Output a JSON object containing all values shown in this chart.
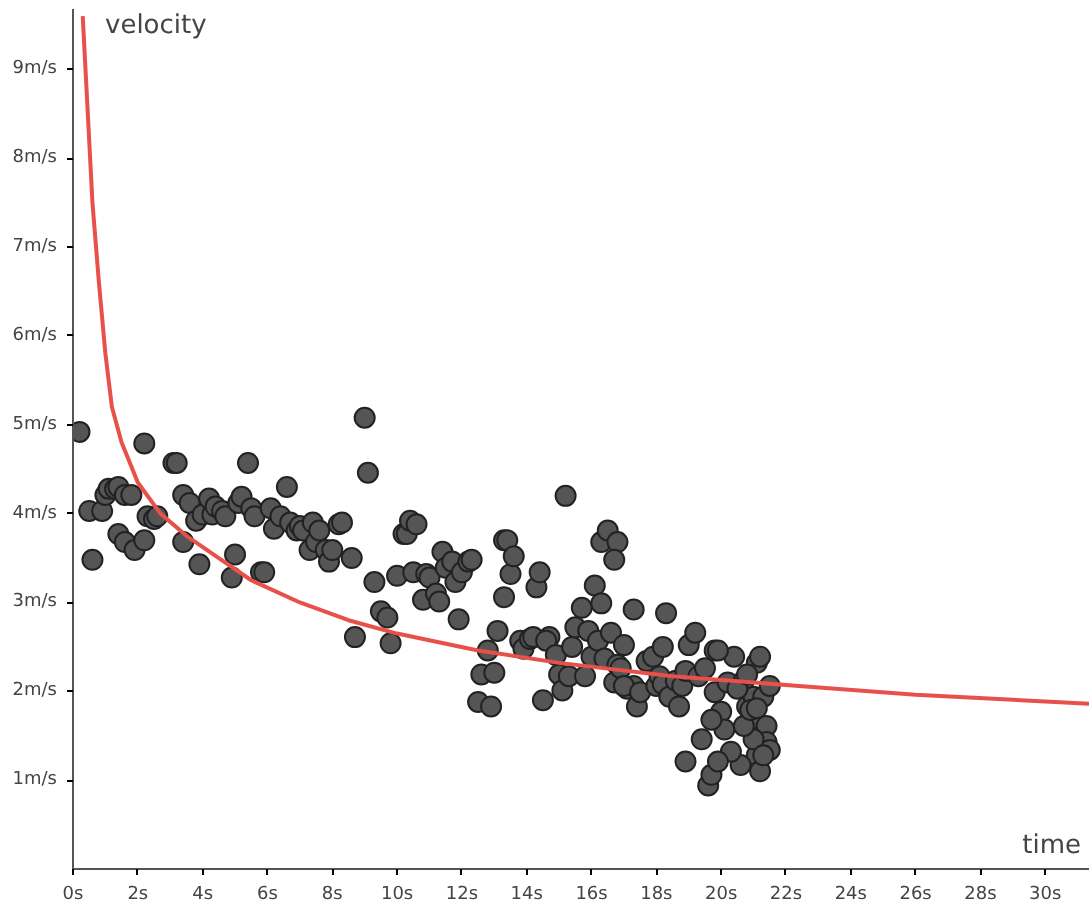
{
  "chart_data": {
    "type": "scatter",
    "xlabel": "time",
    "ylabel": "velocity",
    "xlim": [
      0,
      31.35
    ],
    "ylim": [
      0,
      9.68
    ],
    "xticks": [
      {
        "value": 0,
        "label": "0s"
      },
      {
        "value": 2,
        "label": "2s"
      },
      {
        "value": 4,
        "label": "4s"
      },
      {
        "value": 6,
        "label": "6s"
      },
      {
        "value": 8,
        "label": "8s"
      },
      {
        "value": 10,
        "label": "10s"
      },
      {
        "value": 12,
        "label": "12s"
      },
      {
        "value": 14,
        "label": "14s"
      },
      {
        "value": 16,
        "label": "16s"
      },
      {
        "value": 18,
        "label": "18s"
      },
      {
        "value": 20,
        "label": "20s"
      },
      {
        "value": 22,
        "label": "22s"
      },
      {
        "value": 24,
        "label": "24s"
      },
      {
        "value": 26,
        "label": "26s"
      },
      {
        "value": 28,
        "label": "28s"
      },
      {
        "value": 30,
        "label": "30s"
      }
    ],
    "yticks": [
      {
        "value": 1,
        "label": "1m/s"
      },
      {
        "value": 2,
        "label": "2m/s"
      },
      {
        "value": 3,
        "label": "3m/s"
      },
      {
        "value": 4,
        "label": "4m/s"
      },
      {
        "value": 5,
        "label": "5m/s"
      },
      {
        "value": 6,
        "label": "6m/s"
      },
      {
        "value": 7,
        "label": "7m/s"
      },
      {
        "value": 8,
        "label": "8m/s"
      },
      {
        "value": 9,
        "label": "9m/s"
      }
    ],
    "grid": false,
    "series": [
      {
        "marker": "circle",
        "color": "#555555",
        "x": [
          0.2,
          0.5,
          0.6,
          0.9,
          1.0,
          1.1,
          1.3,
          1.4,
          1.6,
          1.8,
          1.4,
          1.6,
          1.9,
          2.2,
          2.2,
          2.3,
          2.5,
          2.6,
          3.1,
          3.2,
          3.4,
          3.6,
          3.4,
          3.9,
          3.8,
          4.0,
          4.2,
          4.3,
          4.4,
          4.6,
          4.7,
          4.9,
          5.0,
          5.1,
          5.2,
          5.4,
          5.5,
          5.6,
          5.8,
          5.9,
          6.1,
          6.2,
          6.4,
          6.6,
          6.7,
          6.9,
          7.0,
          7.1,
          7.3,
          7.4,
          7.5,
          7.6,
          7.8,
          7.9,
          8.0,
          8.2,
          8.3,
          8.6,
          8.7,
          9.0,
          9.1,
          9.3,
          9.5,
          9.7,
          9.8,
          10.0,
          10.2,
          10.3,
          10.4,
          10.5,
          10.6,
          10.8,
          10.9,
          11.0,
          11.2,
          11.3,
          11.4,
          11.5,
          11.7,
          11.8,
          11.9,
          12.0,
          12.2,
          12.3,
          12.5,
          12.6,
          12.8,
          12.9,
          13.0,
          13.1,
          13.3,
          13.4,
          13.3,
          13.5,
          13.6,
          13.8,
          13.9,
          14.1,
          14.2,
          14.3,
          14.4,
          14.5,
          14.7,
          14.6,
          14.9,
          15.0,
          15.1,
          15.3,
          15.4,
          15.5,
          15.7,
          15.8,
          15.9,
          16.0,
          16.1,
          16.2,
          16.3,
          16.4,
          16.3,
          16.5,
          16.6,
          16.7,
          16.8,
          16.9,
          17.0,
          17.1,
          17.3,
          17.3,
          17.0,
          17.4,
          17.5,
          17.7,
          17.9,
          18.0,
          18.1,
          18.2,
          18.3,
          18.2,
          18.4,
          18.6,
          18.7,
          18.8,
          18.9,
          19.0,
          19.2,
          19.3,
          19.5,
          19.8,
          20.0,
          20.2,
          20.4,
          20.7,
          20.8,
          20.9,
          21.0,
          21.1,
          21.2,
          21.3,
          21.4,
          21.5,
          21.4,
          21.5,
          21.1,
          21.2,
          21.0,
          20.6,
          20.1,
          20.3,
          19.4,
          19.7,
          19.8,
          19.9,
          20.5,
          20.7,
          20.8,
          20.9,
          21.1,
          18.9,
          19.6,
          19.7,
          19.9,
          21.3,
          15.2,
          16.8,
          16.7
        ],
        "values": [
          4.92,
          4.03,
          3.48,
          4.03,
          4.21,
          4.28,
          4.28,
          4.3,
          4.21,
          4.21,
          3.77,
          3.68,
          3.59,
          4.79,
          3.7,
          3.97,
          3.94,
          3.97,
          4.57,
          4.57,
          4.21,
          4.12,
          3.68,
          3.43,
          3.92,
          3.99,
          4.17,
          3.99,
          4.08,
          4.03,
          3.97,
          3.28,
          3.54,
          4.12,
          4.19,
          4.57,
          4.06,
          3.97,
          3.34,
          3.34,
          4.06,
          3.83,
          3.97,
          4.3,
          3.9,
          3.81,
          3.86,
          3.81,
          3.59,
          3.9,
          3.68,
          3.81,
          3.59,
          3.46,
          3.59,
          3.88,
          3.9,
          3.5,
          2.61,
          5.08,
          4.46,
          3.23,
          2.9,
          2.83,
          2.54,
          3.3,
          3.77,
          3.77,
          3.92,
          3.34,
          3.88,
          3.03,
          3.32,
          3.28,
          3.1,
          3.01,
          3.57,
          3.39,
          3.46,
          3.23,
          2.81,
          3.34,
          3.46,
          3.48,
          1.88,
          2.19,
          2.46,
          1.83,
          2.21,
          2.68,
          3.7,
          3.7,
          3.06,
          3.32,
          3.52,
          2.57,
          2.48,
          2.59,
          2.61,
          3.17,
          3.34,
          1.9,
          2.61,
          2.57,
          2.41,
          2.19,
          2.01,
          2.17,
          2.5,
          2.72,
          2.94,
          2.17,
          2.68,
          2.39,
          3.19,
          2.57,
          2.99,
          2.37,
          3.68,
          3.81,
          2.66,
          2.1,
          2.3,
          2.26,
          2.52,
          2.03,
          2.06,
          2.92,
          2.06,
          1.83,
          1.99,
          2.34,
          2.39,
          2.06,
          2.17,
          2.5,
          2.88,
          2.08,
          1.94,
          2.12,
          1.83,
          2.06,
          2.23,
          2.52,
          2.66,
          2.17,
          2.26,
          1.99,
          1.77,
          2.1,
          2.39,
          2.12,
          1.83,
          1.68,
          1.94,
          2.32,
          2.39,
          1.94,
          1.61,
          2.06,
          1.43,
          1.34,
          1.28,
          1.1,
          1.46,
          1.17,
          1.57,
          1.32,
          1.46,
          1.68,
          2.46,
          2.46,
          2.03,
          1.61,
          2.19,
          1.79,
          1.81,
          1.21,
          0.94,
          1.06,
          1.21,
          1.28,
          4.2,
          3.68,
          3.48
        ]
      },
      {
        "type": "line",
        "marker": "none",
        "line_style": "solid",
        "color": "#e8504a",
        "x": [
          0.3,
          0.4,
          0.5,
          0.6,
          0.8,
          1.0,
          1.2,
          1.5,
          2.0,
          2.7,
          3.5,
          4.5,
          5.5,
          7.0,
          8.5,
          10,
          12.5,
          15,
          18.5,
          22.4,
          26,
          31.35
        ],
        "values": [
          9.6,
          8.9,
          8.2,
          7.5,
          6.6,
          5.8,
          5.2,
          4.8,
          4.35,
          4.0,
          3.75,
          3.5,
          3.25,
          3.0,
          2.8,
          2.65,
          2.46,
          2.32,
          2.17,
          2.06,
          1.96,
          1.86
        ]
      }
    ]
  }
}
